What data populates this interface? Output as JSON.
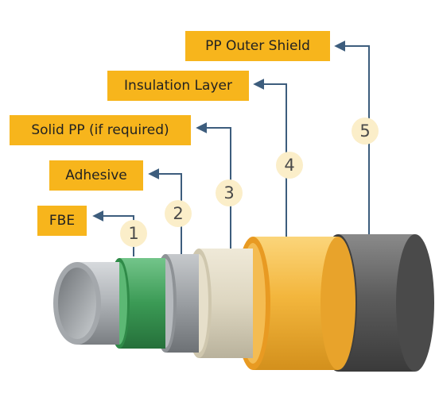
{
  "colors": {
    "label_bg": "#f7b51c",
    "number_bg": "#fbeec9",
    "leader_line": "#3d5d7d",
    "fbe": "#3b9a55",
    "solid_pp": "#ddd6c0",
    "insulation": "#f3b63d",
    "outer_shield": "#5d5d5d"
  },
  "layers": [
    {
      "number": "1",
      "label": "FBE",
      "icon": "fbe-layer"
    },
    {
      "number": "2",
      "label": "Adhesive",
      "icon": "adhesive-layer"
    },
    {
      "number": "3",
      "label": "Solid PP (if required)",
      "icon": "solid-pp-layer"
    },
    {
      "number": "4",
      "label": "Insulation Layer",
      "icon": "insulation-layer"
    },
    {
      "number": "5",
      "label": "PP Outer Shield",
      "icon": "outer-shield-layer"
    }
  ]
}
